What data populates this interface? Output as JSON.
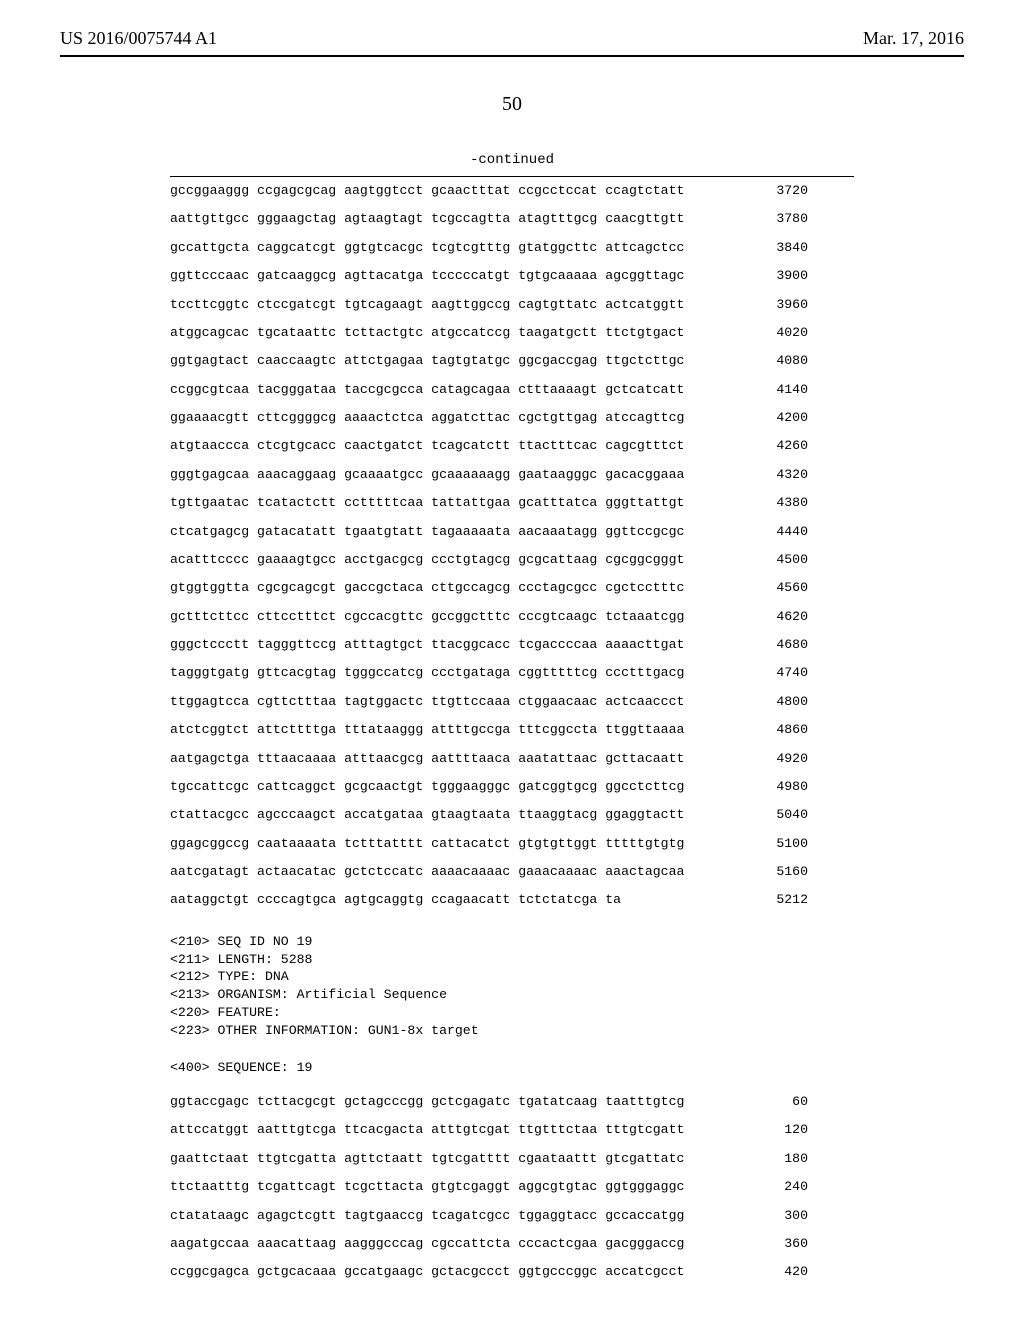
{
  "header": {
    "left": "US 2016/0075744 A1",
    "right": "Mar. 17, 2016"
  },
  "page_number": "50",
  "continued_label": "-continued",
  "sequence_rows_a": [
    {
      "seq": "gccggaaggg ccgagcgcag aagtggtcct gcaactttat ccgcctccat ccagtctatt",
      "pos": "3720"
    },
    {
      "seq": "aattgttgcc gggaagctag agtaagtagt tcgccagtta atagtttgcg caacgttgtt",
      "pos": "3780"
    },
    {
      "seq": "gccattgcta caggcatcgt ggtgtcacgc tcgtcgtttg gtatggcttc attcagctcc",
      "pos": "3840"
    },
    {
      "seq": "ggttcccaac gatcaaggcg agttacatga tcccccatgt tgtgcaaaaa agcggttagc",
      "pos": "3900"
    },
    {
      "seq": "tccttcggtc ctccgatcgt tgtcagaagt aagttggccg cagtgttatc actcatggtt",
      "pos": "3960"
    },
    {
      "seq": "atggcagcac tgcataattc tcttactgtc atgccatccg taagatgctt ttctgtgact",
      "pos": "4020"
    },
    {
      "seq": "ggtgagtact caaccaagtc attctgagaa tagtgtatgc ggcgaccgag ttgctcttgc",
      "pos": "4080"
    },
    {
      "seq": "ccggcgtcaa tacgggataa taccgcgcca catagcagaa ctttaaaagt gctcatcatt",
      "pos": "4140"
    },
    {
      "seq": "ggaaaacgtt cttcggggcg aaaactctca aggatcttac cgctgttgag atccagttcg",
      "pos": "4200"
    },
    {
      "seq": "atgtaaccca ctcgtgcacc caactgatct tcagcatctt ttactttcac cagcgtttct",
      "pos": "4260"
    },
    {
      "seq": "gggtgagcaa aaacaggaag gcaaaatgcc gcaaaaaagg gaataagggc gacacggaaa",
      "pos": "4320"
    },
    {
      "seq": "tgttgaatac tcatactctt cctttttcaa tattattgaa gcatttatca gggttattgt",
      "pos": "4380"
    },
    {
      "seq": "ctcatgagcg gatacatatt tgaatgtatt tagaaaaata aacaaatagg ggttccgcgc",
      "pos": "4440"
    },
    {
      "seq": "acatttcccc gaaaagtgcc acctgacgcg ccctgtagcg gcgcattaag cgcggcgggt",
      "pos": "4500"
    },
    {
      "seq": "gtggtggtta cgcgcagcgt gaccgctaca cttgccagcg ccctagcgcc cgctcctttc",
      "pos": "4560"
    },
    {
      "seq": "gctttcttcc cttcctttct cgccacgttc gccggctttc cccgtcaagc tctaaatcgg",
      "pos": "4620"
    },
    {
      "seq": "gggctccctt tagggttccg atttagtgct ttacggcacc tcgaccccaa aaaacttgat",
      "pos": "4680"
    },
    {
      "seq": "tagggtgatg gttcacgtag tgggccatcg ccctgataga cggtttttcg ccctttgacg",
      "pos": "4740"
    },
    {
      "seq": "ttggagtcca cgttctttaa tagtggactc ttgttccaaa ctggaacaac actcaaccct",
      "pos": "4800"
    },
    {
      "seq": "atctcggtct attcttttga tttataaggg attttgccga tttcggccta ttggttaaaa",
      "pos": "4860"
    },
    {
      "seq": "aatgagctga tttaacaaaa atttaacgcg aattttaaca aaatattaac gcttacaatt",
      "pos": "4920"
    },
    {
      "seq": "tgccattcgc cattcaggct gcgcaactgt tgggaagggc gatcggtgcg ggcctcttcg",
      "pos": "4980"
    },
    {
      "seq": "ctattacgcc agcccaagct accatgataa gtaagtaata ttaaggtacg ggaggtactt",
      "pos": "5040"
    },
    {
      "seq": "ggagcggccg caataaaata tctttatttt cattacatct gtgtgttggt tttttgtgtg",
      "pos": "5100"
    },
    {
      "seq": "aatcgatagt actaacatac gctctccatc aaaacaaaac gaaacaaaac aaactagcaa",
      "pos": "5160"
    },
    {
      "seq": "aataggctgt ccccagtgca agtgcaggtg ccagaacatt tctctatcga ta",
      "pos": "5212"
    }
  ],
  "metadata": [
    "<210> SEQ ID NO 19",
    "<211> LENGTH: 5288",
    "<212> TYPE: DNA",
    "<213> ORGANISM: Artificial Sequence",
    "<220> FEATURE:",
    "<223> OTHER INFORMATION: GUN1-8x target"
  ],
  "seq_label": "<400> SEQUENCE: 19",
  "sequence_rows_b": [
    {
      "seq": "ggtaccgagc tcttacgcgt gctagcccgg gctcgagatc tgatatcaag taatttgtcg",
      "pos": "60"
    },
    {
      "seq": "attccatggt aatttgtcga ttcacgacta atttgtcgat ttgtttctaa tttgtcgatt",
      "pos": "120"
    },
    {
      "seq": "gaattctaat ttgtcgatta agttctaatt tgtcgatttt cgaataattt gtcgattatc",
      "pos": "180"
    },
    {
      "seq": "ttctaatttg tcgattcagt tcgcttacta gtgtcgaggt aggcgtgtac ggtgggaggc",
      "pos": "240"
    },
    {
      "seq": "ctatataagc agagctcgtt tagtgaaccg tcagatcgcc tggaggtacc gccaccatgg",
      "pos": "300"
    },
    {
      "seq": "aagatgccaa aaacattaag aagggcccag cgccattcta cccactcgaa gacgggaccg",
      "pos": "360"
    },
    {
      "seq": "ccggcgagca gctgcacaaa gccatgaagc gctacgccct ggtgcccggc accatcgcct",
      "pos": "420"
    }
  ]
}
